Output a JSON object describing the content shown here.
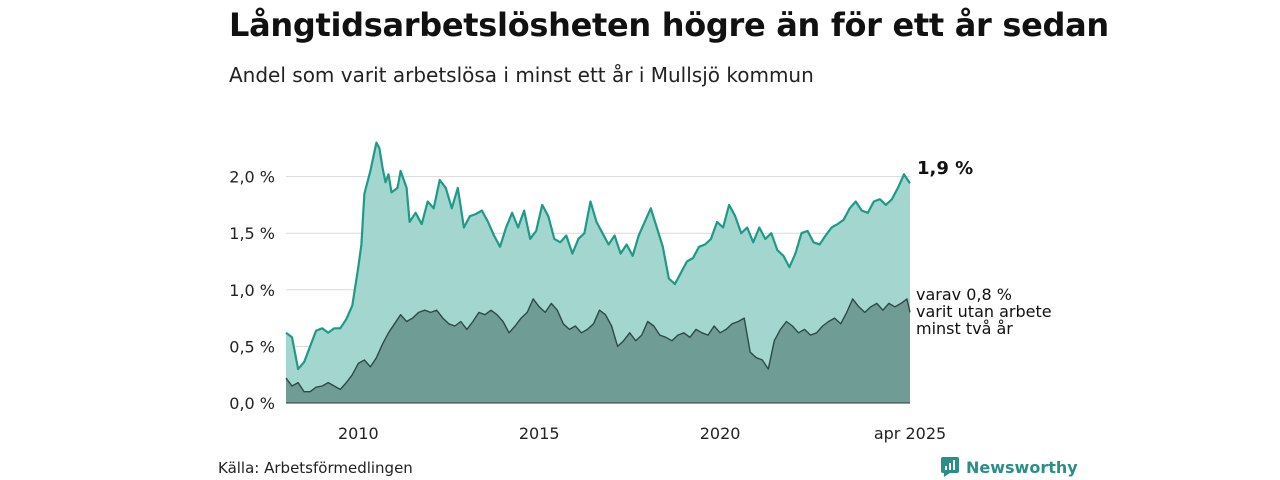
{
  "header": {
    "title": "Långtidsarbetslösheten högre än för ett år sedan",
    "subtitle": "Andel som varit arbetslösa i minst ett år i Mullsjö kommun"
  },
  "footer": {
    "source": "Källa: Arbetsförmedlingen",
    "brand": "Newsworthy"
  },
  "colors": {
    "series1_line": "#1f9a88",
    "series1_fill": "#a3d6cf",
    "series2_line": "#2d4a45",
    "series2_fill": "#6f9c95",
    "grid": "#d9d9d9",
    "brand": "#2a8f87"
  },
  "chart_data": {
    "type": "area",
    "title": "Långtidsarbetslösheten högre än för ett år sedan",
    "subtitle": "Andel som varit arbetslösa i minst ett år i Mullsjö kommun",
    "xlim": [
      "2008-01",
      "2025-04"
    ],
    "ylim": [
      0,
      2.5
    ],
    "yticks": [
      0.0,
      0.5,
      1.0,
      1.5,
      2.0
    ],
    "ytick_labels": [
      "0,0 %",
      "0,5 %",
      "1,0 %",
      "1,5 %",
      "2,0 %"
    ],
    "xtick_labels": [
      {
        "x": "2010-01",
        "label": "2010"
      },
      {
        "x": "2015-01",
        "label": "2015"
      },
      {
        "x": "2020-01",
        "label": "2020"
      },
      {
        "x": "2025-04",
        "label": "apr 2025"
      }
    ],
    "grid": true,
    "series": [
      {
        "key": "total",
        "end_label": "1,9 %",
        "points": [
          [
            "2008-01",
            0.62
          ],
          [
            "2008-03",
            0.58
          ],
          [
            "2008-05",
            0.3
          ],
          [
            "2008-07",
            0.36
          ],
          [
            "2008-09",
            0.5
          ],
          [
            "2008-11",
            0.64
          ],
          [
            "2009-01",
            0.66
          ],
          [
            "2009-03",
            0.62
          ],
          [
            "2009-05",
            0.66
          ],
          [
            "2009-07",
            0.66
          ],
          [
            "2009-09",
            0.74
          ],
          [
            "2009-11",
            0.86
          ],
          [
            "2010-01",
            1.2
          ],
          [
            "2010-02",
            1.4
          ],
          [
            "2010-03",
            1.85
          ],
          [
            "2010-05",
            2.05
          ],
          [
            "2010-07",
            2.3
          ],
          [
            "2010-08",
            2.25
          ],
          [
            "2010-09",
            2.08
          ],
          [
            "2010-10",
            1.95
          ],
          [
            "2010-11",
            2.02
          ],
          [
            "2010-12",
            1.86
          ],
          [
            "2011-02",
            1.9
          ],
          [
            "2011-03",
            2.05
          ],
          [
            "2011-05",
            1.9
          ],
          [
            "2011-06",
            1.6
          ],
          [
            "2011-08",
            1.68
          ],
          [
            "2011-10",
            1.58
          ],
          [
            "2011-12",
            1.78
          ],
          [
            "2012-02",
            1.72
          ],
          [
            "2012-04",
            1.97
          ],
          [
            "2012-06",
            1.9
          ],
          [
            "2012-08",
            1.72
          ],
          [
            "2012-10",
            1.9
          ],
          [
            "2012-12",
            1.55
          ],
          [
            "2013-02",
            1.65
          ],
          [
            "2013-04",
            1.67
          ],
          [
            "2013-06",
            1.7
          ],
          [
            "2013-08",
            1.6
          ],
          [
            "2013-10",
            1.48
          ],
          [
            "2013-12",
            1.38
          ],
          [
            "2014-02",
            1.55
          ],
          [
            "2014-04",
            1.68
          ],
          [
            "2014-06",
            1.55
          ],
          [
            "2014-08",
            1.7
          ],
          [
            "2014-10",
            1.45
          ],
          [
            "2014-12",
            1.52
          ],
          [
            "2015-02",
            1.75
          ],
          [
            "2015-04",
            1.65
          ],
          [
            "2015-06",
            1.45
          ],
          [
            "2015-08",
            1.42
          ],
          [
            "2015-10",
            1.48
          ],
          [
            "2015-12",
            1.32
          ],
          [
            "2016-02",
            1.45
          ],
          [
            "2016-04",
            1.5
          ],
          [
            "2016-06",
            1.78
          ],
          [
            "2016-08",
            1.6
          ],
          [
            "2016-10",
            1.5
          ],
          [
            "2016-12",
            1.4
          ],
          [
            "2017-02",
            1.48
          ],
          [
            "2017-04",
            1.32
          ],
          [
            "2017-06",
            1.4
          ],
          [
            "2017-08",
            1.3
          ],
          [
            "2017-10",
            1.48
          ],
          [
            "2017-12",
            1.6
          ],
          [
            "2018-02",
            1.72
          ],
          [
            "2018-04",
            1.55
          ],
          [
            "2018-06",
            1.38
          ],
          [
            "2018-08",
            1.1
          ],
          [
            "2018-10",
            1.05
          ],
          [
            "2018-12",
            1.15
          ],
          [
            "2019-02",
            1.25
          ],
          [
            "2019-04",
            1.28
          ],
          [
            "2019-06",
            1.38
          ],
          [
            "2019-08",
            1.4
          ],
          [
            "2019-10",
            1.45
          ],
          [
            "2019-12",
            1.6
          ],
          [
            "2020-02",
            1.55
          ],
          [
            "2020-04",
            1.75
          ],
          [
            "2020-06",
            1.65
          ],
          [
            "2020-08",
            1.5
          ],
          [
            "2020-10",
            1.55
          ],
          [
            "2020-12",
            1.42
          ],
          [
            "2021-02",
            1.55
          ],
          [
            "2021-04",
            1.45
          ],
          [
            "2021-06",
            1.5
          ],
          [
            "2021-08",
            1.35
          ],
          [
            "2021-10",
            1.3
          ],
          [
            "2021-12",
            1.2
          ],
          [
            "2022-02",
            1.32
          ],
          [
            "2022-04",
            1.5
          ],
          [
            "2022-06",
            1.52
          ],
          [
            "2022-08",
            1.42
          ],
          [
            "2022-10",
            1.4
          ],
          [
            "2022-12",
            1.48
          ],
          [
            "2023-02",
            1.55
          ],
          [
            "2023-04",
            1.58
          ],
          [
            "2023-06",
            1.62
          ],
          [
            "2023-08",
            1.72
          ],
          [
            "2023-10",
            1.78
          ],
          [
            "2023-12",
            1.7
          ],
          [
            "2024-02",
            1.68
          ],
          [
            "2024-04",
            1.78
          ],
          [
            "2024-06",
            1.8
          ],
          [
            "2024-08",
            1.75
          ],
          [
            "2024-10",
            1.8
          ],
          [
            "2024-12",
            1.9
          ],
          [
            "2025-02",
            2.02
          ],
          [
            "2025-04",
            1.94
          ]
        ]
      },
      {
        "key": "two_years",
        "end_label": [
          "varav 0,8 %",
          "varit utan arbete",
          "minst två år"
        ],
        "points": [
          [
            "2008-01",
            0.22
          ],
          [
            "2008-03",
            0.15
          ],
          [
            "2008-05",
            0.18
          ],
          [
            "2008-07",
            0.1
          ],
          [
            "2008-09",
            0.1
          ],
          [
            "2008-11",
            0.14
          ],
          [
            "2009-01",
            0.15
          ],
          [
            "2009-03",
            0.18
          ],
          [
            "2009-05",
            0.15
          ],
          [
            "2009-07",
            0.12
          ],
          [
            "2009-09",
            0.18
          ],
          [
            "2009-11",
            0.25
          ],
          [
            "2010-01",
            0.35
          ],
          [
            "2010-03",
            0.38
          ],
          [
            "2010-05",
            0.32
          ],
          [
            "2010-07",
            0.4
          ],
          [
            "2010-09",
            0.52
          ],
          [
            "2010-11",
            0.62
          ],
          [
            "2011-01",
            0.7
          ],
          [
            "2011-03",
            0.78
          ],
          [
            "2011-05",
            0.72
          ],
          [
            "2011-07",
            0.75
          ],
          [
            "2011-09",
            0.8
          ],
          [
            "2011-11",
            0.82
          ],
          [
            "2012-01",
            0.8
          ],
          [
            "2012-03",
            0.82
          ],
          [
            "2012-05",
            0.75
          ],
          [
            "2012-07",
            0.7
          ],
          [
            "2012-09",
            0.68
          ],
          [
            "2012-11",
            0.72
          ],
          [
            "2013-01",
            0.65
          ],
          [
            "2013-03",
            0.72
          ],
          [
            "2013-05",
            0.8
          ],
          [
            "2013-07",
            0.78
          ],
          [
            "2013-09",
            0.82
          ],
          [
            "2013-11",
            0.78
          ],
          [
            "2014-01",
            0.72
          ],
          [
            "2014-03",
            0.62
          ],
          [
            "2014-05",
            0.68
          ],
          [
            "2014-07",
            0.75
          ],
          [
            "2014-09",
            0.8
          ],
          [
            "2014-11",
            0.92
          ],
          [
            "2015-01",
            0.85
          ],
          [
            "2015-03",
            0.8
          ],
          [
            "2015-05",
            0.88
          ],
          [
            "2015-07",
            0.82
          ],
          [
            "2015-09",
            0.7
          ],
          [
            "2015-11",
            0.65
          ],
          [
            "2016-01",
            0.68
          ],
          [
            "2016-03",
            0.62
          ],
          [
            "2016-05",
            0.65
          ],
          [
            "2016-07",
            0.7
          ],
          [
            "2016-09",
            0.82
          ],
          [
            "2016-11",
            0.78
          ],
          [
            "2017-01",
            0.68
          ],
          [
            "2017-03",
            0.5
          ],
          [
            "2017-05",
            0.55
          ],
          [
            "2017-07",
            0.62
          ],
          [
            "2017-09",
            0.55
          ],
          [
            "2017-11",
            0.6
          ],
          [
            "2018-01",
            0.72
          ],
          [
            "2018-03",
            0.68
          ],
          [
            "2018-05",
            0.6
          ],
          [
            "2018-07",
            0.58
          ],
          [
            "2018-09",
            0.55
          ],
          [
            "2018-11",
            0.6
          ],
          [
            "2019-01",
            0.62
          ],
          [
            "2019-03",
            0.58
          ],
          [
            "2019-05",
            0.65
          ],
          [
            "2019-07",
            0.62
          ],
          [
            "2019-09",
            0.6
          ],
          [
            "2019-11",
            0.68
          ],
          [
            "2020-01",
            0.62
          ],
          [
            "2020-03",
            0.65
          ],
          [
            "2020-05",
            0.7
          ],
          [
            "2020-07",
            0.72
          ],
          [
            "2020-09",
            0.75
          ],
          [
            "2020-11",
            0.45
          ],
          [
            "2021-01",
            0.4
          ],
          [
            "2021-03",
            0.38
          ],
          [
            "2021-05",
            0.3
          ],
          [
            "2021-07",
            0.55
          ],
          [
            "2021-09",
            0.65
          ],
          [
            "2021-11",
            0.72
          ],
          [
            "2022-01",
            0.68
          ],
          [
            "2022-03",
            0.62
          ],
          [
            "2022-05",
            0.65
          ],
          [
            "2022-07",
            0.6
          ],
          [
            "2022-09",
            0.62
          ],
          [
            "2022-11",
            0.68
          ],
          [
            "2023-01",
            0.72
          ],
          [
            "2023-03",
            0.75
          ],
          [
            "2023-05",
            0.7
          ],
          [
            "2023-07",
            0.8
          ],
          [
            "2023-09",
            0.92
          ],
          [
            "2023-11",
            0.85
          ],
          [
            "2024-01",
            0.8
          ],
          [
            "2024-03",
            0.85
          ],
          [
            "2024-05",
            0.88
          ],
          [
            "2024-07",
            0.82
          ],
          [
            "2024-09",
            0.88
          ],
          [
            "2024-11",
            0.85
          ],
          [
            "2025-01",
            0.88
          ],
          [
            "2025-03",
            0.92
          ],
          [
            "2025-04",
            0.8
          ]
        ]
      }
    ]
  }
}
